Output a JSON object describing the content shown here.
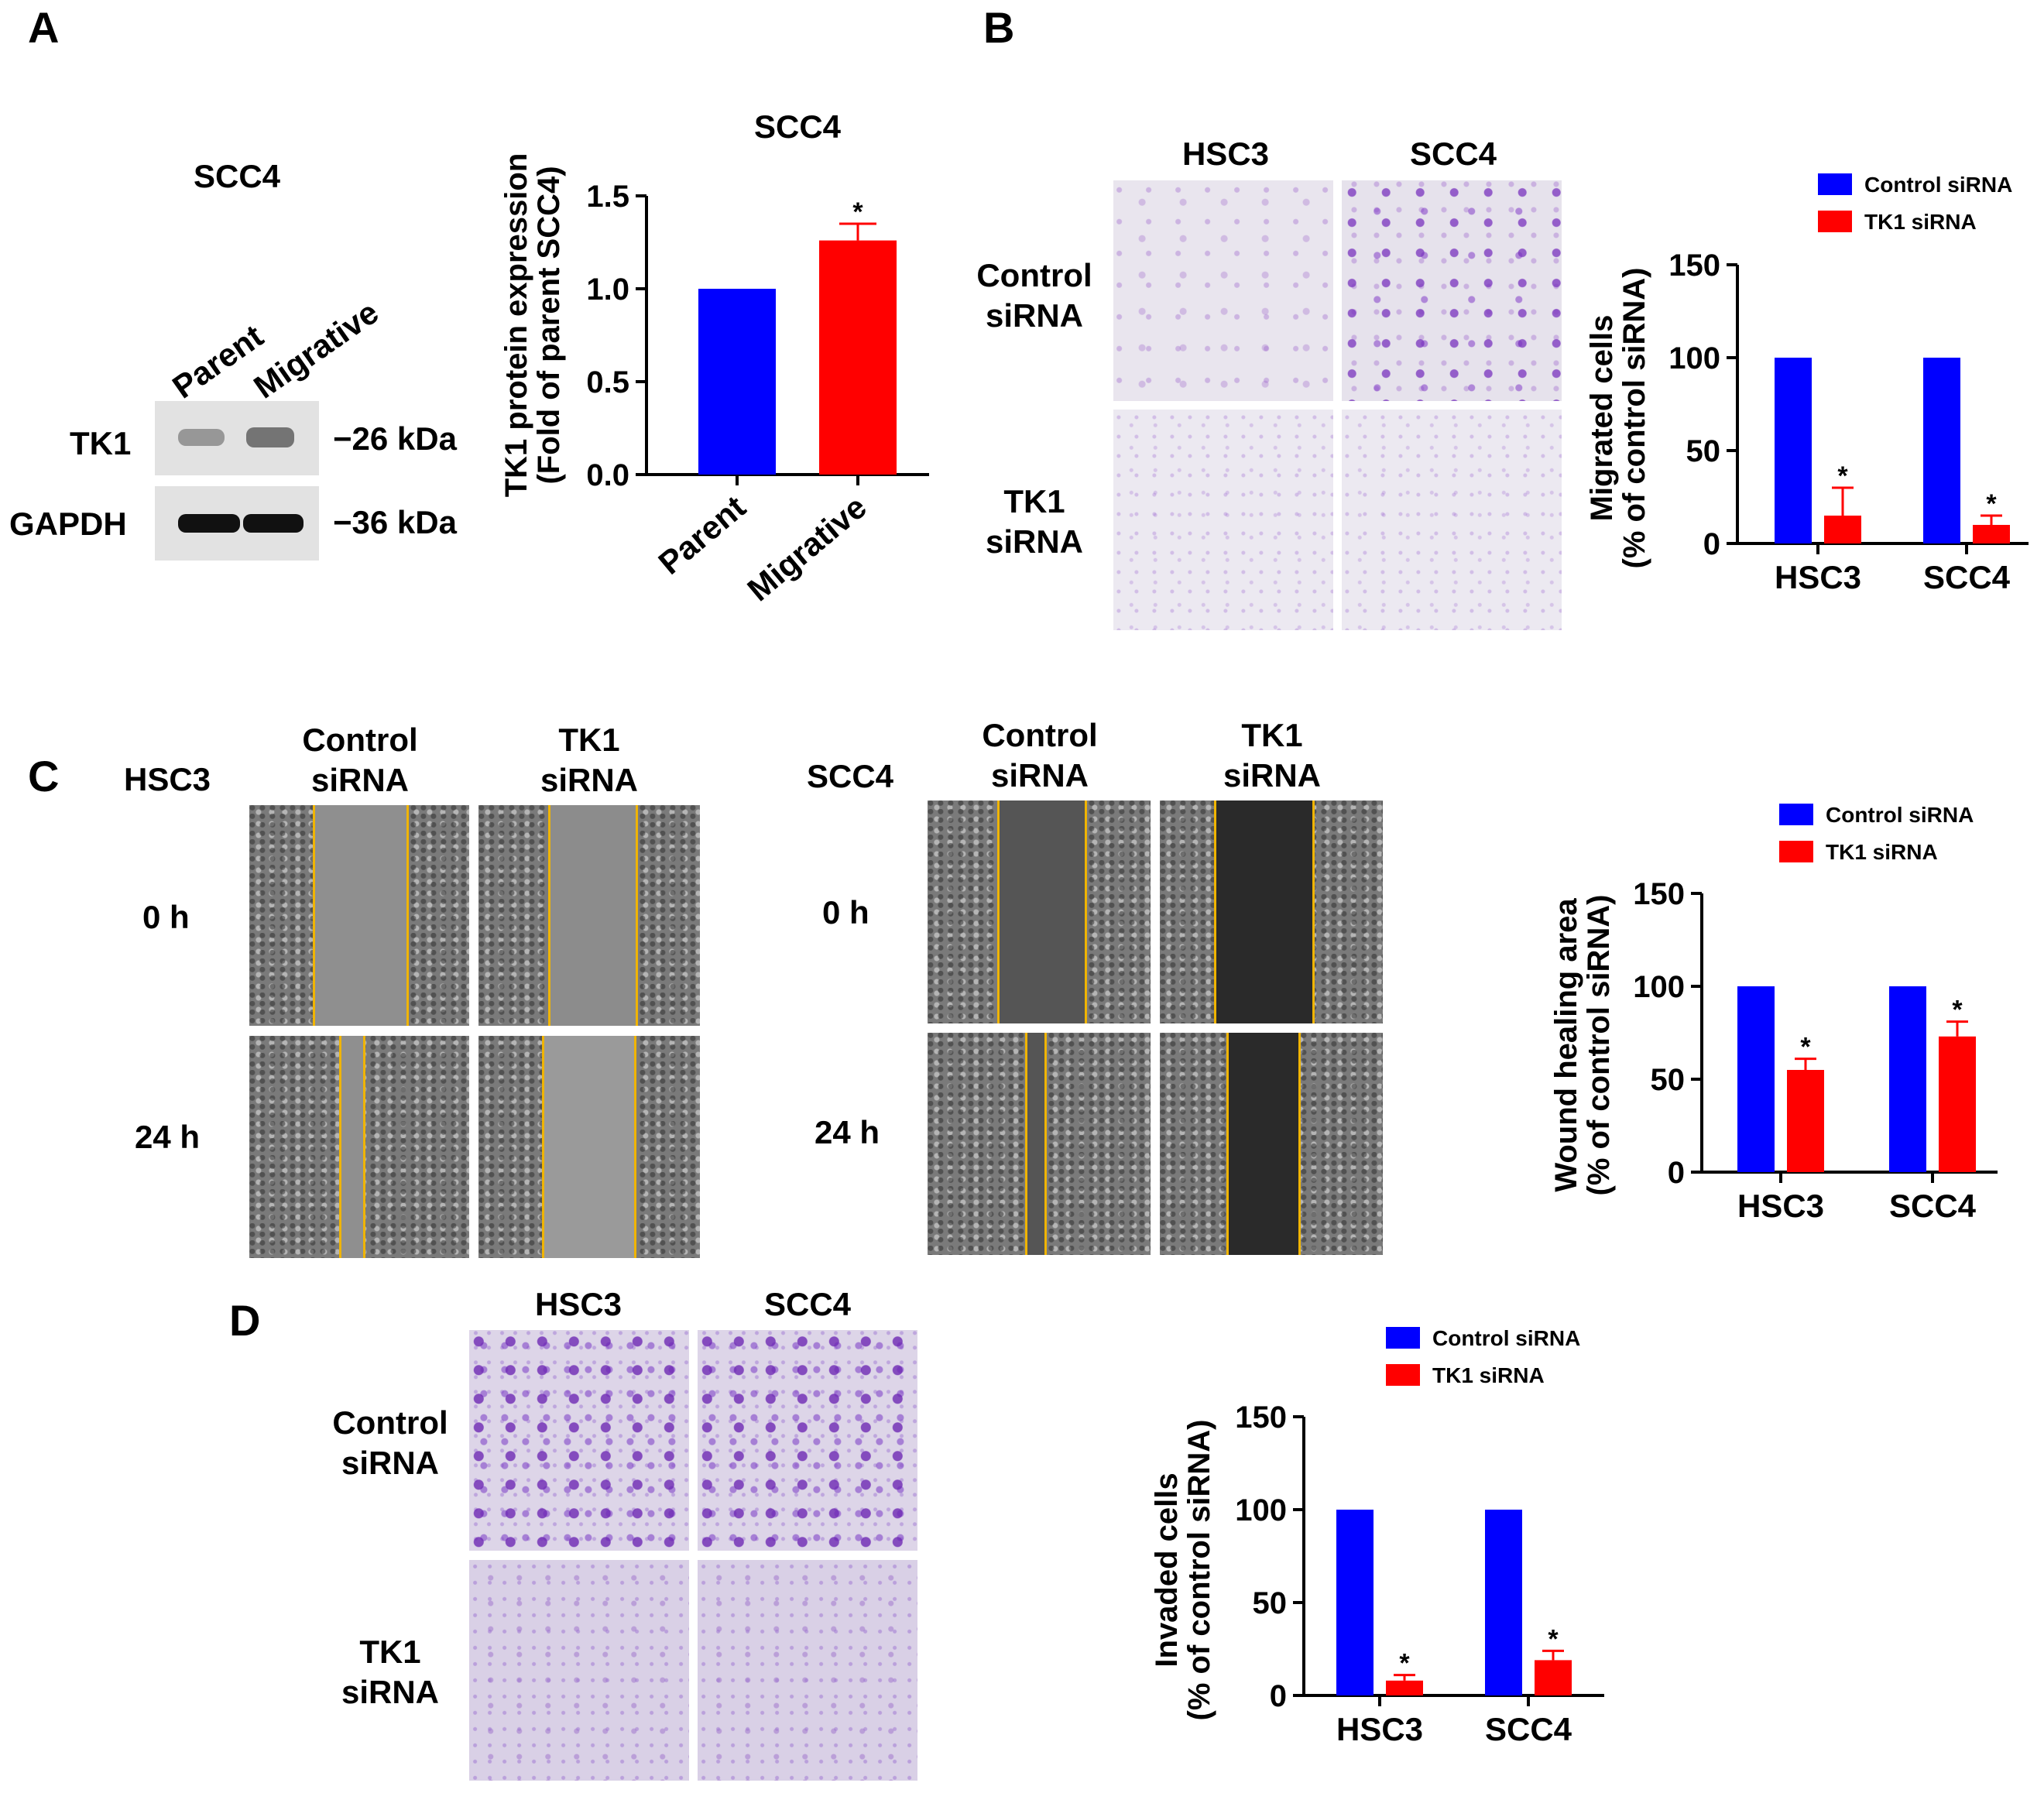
{
  "panels": {
    "a": "A",
    "b": "B",
    "c": "C",
    "d": "D"
  },
  "panel_a": {
    "blot_title": "SCC4",
    "lanes": [
      "Parent",
      "Migrative"
    ],
    "rows": [
      "TK1",
      "GAPDH"
    ],
    "kda": [
      "−26 kDa",
      "−36 kDa"
    ]
  },
  "panel_b": {
    "col_headers": [
      "HSC3",
      "SCC4"
    ],
    "row_headers": [
      [
        "Control",
        "siRNA"
      ],
      [
        "TK1",
        "siRNA"
      ]
    ]
  },
  "panel_c": {
    "left_cell": "HSC3",
    "right_cell": "SCC4",
    "col_headers": [
      [
        "Control",
        "siRNA"
      ],
      [
        "TK1",
        "siRNA"
      ]
    ],
    "times": [
      "0 h",
      "24 h"
    ]
  },
  "panel_d": {
    "col_headers": [
      "HSC3",
      "SCC4"
    ],
    "row_headers": [
      [
        "Control",
        "siRNA"
      ],
      [
        "TK1",
        "siRNA"
      ]
    ]
  },
  "colors": {
    "control": "#0000ff",
    "tk1": "#ff0000",
    "wound_line": "#f0b400"
  },
  "chart_data": [
    {
      "id": "A",
      "type": "bar",
      "title": "SCC4",
      "ylabel_lines": [
        "TK1 protein expression",
        "(Fold of parent SCC4)"
      ],
      "categories": [
        "Parent",
        "Migrative"
      ],
      "values": [
        1.0,
        1.26
      ],
      "errors": [
        0,
        0.09
      ],
      "significance": [
        "",
        "*"
      ],
      "bar_colors": [
        "#0000ff",
        "#ff0000"
      ],
      "ylim": [
        0,
        1.5
      ],
      "yticks": [
        "0.0",
        "0.5",
        "1.0",
        "1.5"
      ],
      "ytick_values": [
        0,
        0.5,
        1.0,
        1.5
      ]
    },
    {
      "id": "B",
      "type": "bar",
      "ylabel_lines": [
        "Migrated cells",
        "(% of control siRNA)"
      ],
      "categories": [
        "HSC3",
        "SCC4"
      ],
      "series": [
        {
          "name": "Control siRNA",
          "color": "#0000ff",
          "values": [
            100,
            100
          ],
          "errors": [
            0,
            0
          ],
          "sig": [
            "",
            ""
          ]
        },
        {
          "name": "TK1 siRNA",
          "color": "#ff0000",
          "values": [
            15,
            10
          ],
          "errors": [
            15,
            5
          ],
          "sig": [
            "*",
            "*"
          ]
        }
      ],
      "ylim": [
        0,
        150
      ],
      "yticks": [
        "0",
        "50",
        "100",
        "150"
      ],
      "ytick_values": [
        0,
        50,
        100,
        150
      ],
      "legend": "top-right"
    },
    {
      "id": "C",
      "type": "bar",
      "ylabel_lines": [
        "Wound healing area",
        "(% of control siRNA)"
      ],
      "categories": [
        "HSC3",
        "SCC4"
      ],
      "series": [
        {
          "name": "Control siRNA",
          "color": "#0000ff",
          "values": [
            100,
            100
          ],
          "errors": [
            0,
            0
          ],
          "sig": [
            "",
            ""
          ]
        },
        {
          "name": "TK1 siRNA",
          "color": "#ff0000",
          "values": [
            55,
            73
          ],
          "errors": [
            6,
            8
          ],
          "sig": [
            "*",
            "*"
          ]
        }
      ],
      "ylim": [
        0,
        150
      ],
      "yticks": [
        "0",
        "50",
        "100",
        "150"
      ],
      "ytick_values": [
        0,
        50,
        100,
        150
      ],
      "legend": "top-right"
    },
    {
      "id": "D",
      "type": "bar",
      "ylabel_lines": [
        "Invaded cells",
        "(% of control siRNA)"
      ],
      "categories": [
        "HSC3",
        "SCC4"
      ],
      "series": [
        {
          "name": "Control siRNA",
          "color": "#0000ff",
          "values": [
            100,
            100
          ],
          "errors": [
            0,
            0
          ],
          "sig": [
            "",
            ""
          ]
        },
        {
          "name": "TK1 siRNA",
          "color": "#ff0000",
          "values": [
            8,
            19
          ],
          "errors": [
            3,
            5
          ],
          "sig": [
            "*",
            "*"
          ]
        }
      ],
      "ylim": [
        0,
        150
      ],
      "yticks": [
        "0",
        "50",
        "100",
        "150"
      ],
      "ytick_values": [
        0,
        50,
        100,
        150
      ],
      "legend": "top-right"
    }
  ]
}
